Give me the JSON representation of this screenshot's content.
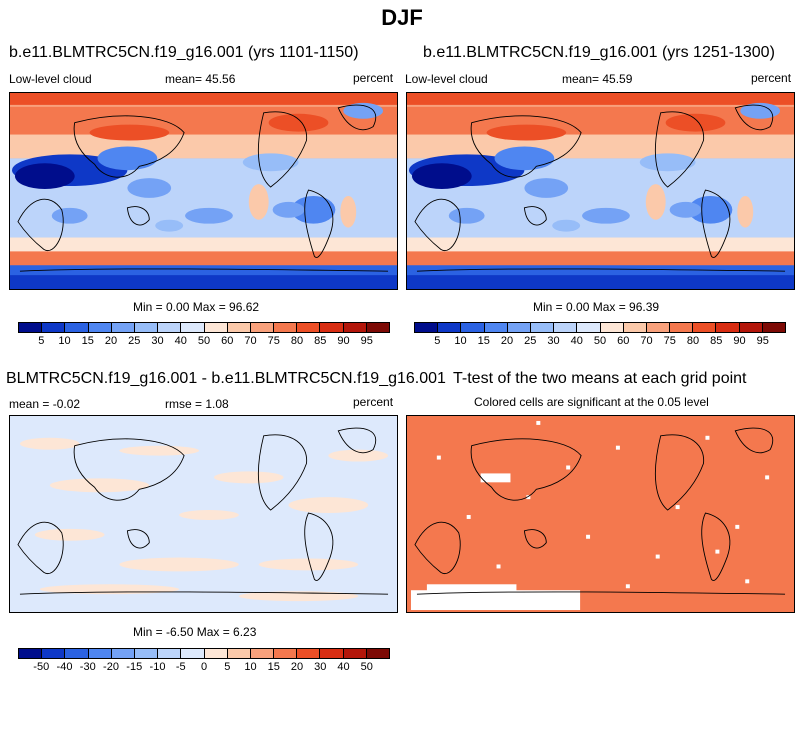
{
  "figure": {
    "title": "DJF"
  },
  "panels": [
    {
      "id": "p1",
      "title": "b.e11.BLMTRC5CN.f19_g16.001 (yrs 1101-1150)",
      "left_label": "Low-level cloud",
      "center_label": "mean=  45.56",
      "right_label": "percent",
      "minmax": "Min =   0.00 Max =  96.62"
    },
    {
      "id": "p2",
      "title": "b.e11.BLMTRC5CN.f19_g16.001 (yrs 1251-1300)",
      "left_label": "Low-level cloud",
      "center_label": "mean=  45.59",
      "right_label": "percent",
      "minmax": "Min =   0.00 Max =  96.39"
    },
    {
      "id": "p3",
      "title": "BLMTRC5CN.f19_g16.001 - b.e11.BLMTRC5CN.f19_g16.001",
      "left_label": "mean =  -0.02",
      "center_label": "rmse =   1.08",
      "right_label": "percent",
      "minmax": "Min =  -6.50 Max =   6.23"
    },
    {
      "id": "p4",
      "title": "T-test of the two means at each grid point",
      "subtitle": "Colored cells are significant at the 0.05 level"
    }
  ],
  "colorbars": {
    "cloud": {
      "ticks": [
        "5",
        "10",
        "15",
        "20",
        "25",
        "30",
        "40",
        "50",
        "60",
        "70",
        "75",
        "80",
        "85",
        "90",
        "95"
      ],
      "colors": [
        "#000d8c",
        "#0e38c7",
        "#2b62e2",
        "#4f86f1",
        "#74a2f5",
        "#97bdf8",
        "#bcd4fa",
        "#dde9fc",
        "#fde6d6",
        "#fbc9aa",
        "#f8a17c",
        "#f4784e",
        "#ec4f26",
        "#d82d12",
        "#b3160a",
        "#7d0a05"
      ]
    },
    "diff": {
      "ticks": [
        "-50",
        "-40",
        "-30",
        "-20",
        "-15",
        "-10",
        "-5",
        "0",
        "5",
        "10",
        "15",
        "20",
        "30",
        "40",
        "50"
      ],
      "colors": [
        "#000d8c",
        "#0e38c7",
        "#2b62e2",
        "#4f86f1",
        "#74a2f5",
        "#97bdf8",
        "#bcd4fa",
        "#dde9fc",
        "#fde6d6",
        "#fbc9aa",
        "#f8a17c",
        "#f4784e",
        "#ec4f26",
        "#d82d12",
        "#b3160a",
        "#7d0a05"
      ]
    }
  },
  "map_colors": {
    "diff_background": "#dde9fc",
    "diff_positive": "#fde6d6",
    "ttest_fill": "#f4784e"
  }
}
